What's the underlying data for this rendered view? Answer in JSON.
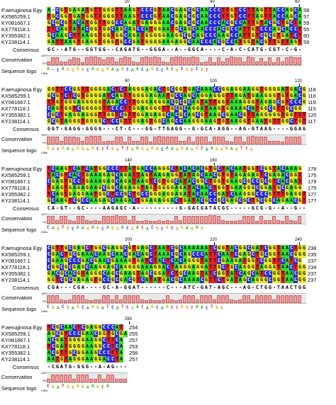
{
  "sequences": [
    "P.aeruginosa Egy",
    "KX585259.1",
    "KY081667.1",
    "KX778118.1",
    "KY355382.1",
    "KY238114.1"
  ],
  "row_labels": {
    "consensus": "Consensus",
    "conservation": "Conservation",
    "logo": "Sequence logo",
    "pct100": "100%",
    "pct0": "0%",
    "bits": "0 Bits"
  },
  "blocks": [
    {
      "ticks": [
        {
          "label": "20",
          "col": 20
        },
        {
          "label": "40",
          "col": 40
        },
        {
          "label": "60",
          "col": 60
        }
      ],
      "rows": [
        "A-CGTGAGATGTTGGGTTAAGTCCCGTAACGAGCGCAACCCTTGTCCTTAGTTACCAGCA",
        "TGCGGTGATGGTTGGGTTAAGTCCCGTAACGAGCGCAACCCTTGTCCTTAGTTACCAGCA",
        "GCGCGTACATGGTTGGCCAGATGAGGGAACGAGCGCAACCCACGCCATTGTACGCTGCTA",
        "TTCAGTATACGGTGGCAGCAGCCATGGAATGCAGCAACCCACGCCATTGTCCCAGCACCT",
        "GCAAGCTTAAGGTGGTGGCAGATGGGGGAAGGCGCAGCCCAAGCCATTGTCGCGTGATCT",
        "GATTAAGTGAGGTGGGTGCCGATGGGGAAGAGGCAACCCACGCCATGGTACGTTGTTAGT"
      ],
      "ends": [
        "58",
        "57",
        "59",
        "55",
        "60",
        "59"
      ],
      "consensus": "GC--ATG--GGTGG--CAGATG--GGGA--A--GGCA----C-A-C-CATG-CGT-C-G-T-",
      "bars": [
        4,
        9,
        9,
        4,
        4,
        7,
        9,
        8,
        3,
        9,
        10,
        10,
        9,
        7,
        9,
        9,
        4,
        8,
        10,
        9,
        4,
        3,
        9,
        10,
        9,
        10,
        9,
        4,
        3,
        9,
        10,
        10,
        9,
        9,
        10,
        9,
        3,
        4,
        9,
        3,
        9,
        4,
        8,
        10,
        9,
        9,
        4,
        10,
        9,
        4,
        8,
        4,
        9,
        3,
        9,
        4,
        9,
        10,
        9,
        9
      ],
      "logo": "A-C  A  GG  GG  CA  GGGA  A  GCA  A  C AG C CATG  CGT C G T"
    },
    {
      "ticks": [
        {
          "label": "80",
          "col": 20
        },
        {
          "label": "100",
          "col": 40
        },
        {
          "label": "120",
          "col": 60
        }
      ],
      "rows": [
        "GGTTCCGGTTGGGGACTCTAGGGAGACTGCGGTGACAAACCGGAGGAAGGTGGGGATGACG",
        "GCGTCTCGTGGGGATCAGTTGGGGAGAATGCCAGCAGGAGGGTTAGATGAAGGGTGTGACG",
        "TTGTGGGAGGGGGTAGACCTTGGGAGGGACGCGCAGTATTGGTAAAGGGTAGAGCGTCCCG",
        "CAGTGGTCGGGGGTTCCCTTGGAGGGGTTGCGCAGGATAAGTGAAAGCATGGCGTTGCGG",
        "CGCTGAGGAGGGTTGGTCGTTGGAGAGGCACGCAGCGTAAGCGAACGTTAGGGGGTGGTTT",
        "GCGTAGGGTGGGGCTCCGTTGGAGTGGCAGCCAAGGGAAGTGTAAGGTGAATGTTGGCTGT"
      ],
      "ends": [
        "118",
        "116",
        "119",
        "115",
        "120",
        "117"
      ],
      "consensus": "GGT-GAGG-GGGG---CT-C---GG-TTGAGG--G-GCA-AGG--AG-GTAAG----GGAGTTG--",
      "bars": [
        9,
        9,
        9,
        4,
        9,
        9,
        9,
        8,
        4,
        9,
        10,
        10,
        10,
        3,
        4,
        4,
        9,
        9,
        3,
        9,
        4,
        4,
        9,
        9,
        3,
        9,
        10,
        9,
        9,
        9,
        9,
        4,
        4,
        9,
        3,
        9,
        9,
        9,
        3,
        9,
        9,
        9,
        4,
        3,
        9,
        9,
        3,
        9,
        10,
        9,
        9,
        9,
        4,
        4,
        4,
        3,
        9,
        9,
        9,
        9
      ],
      "logo": "GGT GAGG GGG   CT C  GG TTGAGG G GCA AGG AG GTAAG  GGAGTTG"
    },
    {
      "ticks": [
        {
          "label": "140",
          "col": 20
        },
        {
          "label": "160",
          "col": 40
        }
      ],
      "rows": [
        "TCAAGTCATCATGGCCCTTATGACCAGGGCTACACACGTGCTACAATGGTCGGTACAAAG",
        "TACGTCACTGAAAGAGCAGATTAGTAAGAGGTATAGCAACGTGTAGAGAGTCGAGACGGT",
        "CGAGTGCCTGAAAGAGCAGATAAGTCGTGGCATACGGCTGGTGAAGCGCCGCGTCACGAT",
        "TGAGTGAGAGAAGCGGCAGAGGTAGTGGGGAGATACAACTGGTGAAGGGCGGATGCGAGG",
        "TCAGTGAGGAATGGCTCCGCTGCCGGGAGGAGATACAACCGATCAAGGGCCCGTTTGAGGT",
        "GCAAGTCGCCAAGAGCAAGACTGGAGAGGACTGATACGCCGCGAGCGCTGCGGCAGAACGT"
      ],
      "ends": [
        "178",
        "175",
        "179",
        "175",
        "177",
        "177"
      ],
      "consensus": "CA-GT--GC----AAGAGC-A----------G-GACGATACGC-----GCG-G--A--G--A--G",
      "bars": [
        9,
        9,
        4,
        9,
        9,
        4,
        3,
        9,
        9,
        4,
        3,
        4,
        3,
        9,
        9,
        9,
        10,
        9,
        9,
        4,
        9,
        3,
        3,
        4,
        3,
        3,
        4,
        3,
        4,
        3,
        9,
        4,
        9,
        9,
        9,
        9,
        9,
        9,
        10,
        10,
        9,
        4,
        3,
        3,
        3,
        4,
        9,
        9,
        9,
        3,
        9,
        4,
        4,
        9,
        4,
        3,
        9,
        4,
        3,
        9
      ],
      "logo": "CA GT GC   AAGAGC A         G GAC GATACGC   GCG G A G A G"
    },
    {
      "ticks": [
        {
          "label": "200",
          "col": 20
        },
        {
          "label": "220",
          "col": 40
        },
        {
          "label": "240",
          "col": 60
        }
      ],
      "rows": [
        "CGTTGCGAGCTGGCGAGGCGTGAGCTAATCGCAAAAAATCGGTACGGCGATCGGTAACTGG",
        "CGACTGCGAAACAAGCAACGACAGCTAAACGCAGCCCATTCAATCGAGCTGCGGTAACGGG",
        "CGAAGCCCGACGAACGAAAGTGATCTACTCACAGGGTATTCGAAGATGGTCGGTTCATCG",
        "CGGCGCGAGCAAGGAGCAGGGGAAAGGACTAGGGAGGATTGCTGCAGGGTAGGGTAACTGG",
        "GACGCACGTAGGGCAGCGAAGTAGCGGATCTGCAAGTATCGGTATCAGCATCCGGTAACGG",
        "GGTCGCGAGAGTGCCGCGACGTCATATGACGCAAAACGTTCTGATAGCAGGGCGGTAACGG"
      ],
      "ends": [
        "238",
        "235",
        "237",
        "234",
        "237",
        "237"
      ],
      "consensus": "CGA---CGA----GC-A-GGAT------C---ATC-GAT-AGC---AG-CTGG-TAACTGG",
      "bars": [
        9,
        9,
        9,
        4,
        3,
        4,
        9,
        9,
        9,
        4,
        3,
        4,
        4,
        9,
        9,
        4,
        9,
        4,
        9,
        9,
        9,
        9,
        4,
        3,
        4,
        3,
        3,
        4,
        9,
        4,
        3,
        4,
        9,
        9,
        9,
        4,
        9,
        9,
        9,
        4,
        9,
        9,
        9,
        4,
        3,
        4,
        9,
        9,
        4,
        9,
        9,
        9,
        9,
        4,
        9,
        9,
        9,
        9,
        9,
        9
      ],
      "logo": "CGA CGA GC A GGAT C ATC GAT AGC AG CTGG TAACTGG"
    },
    {
      "ticks": [
        {
          "label": "260",
          "col": 20
        }
      ],
      "rows": [
        "TCGCAACTCGAGGCCCAT",
        "AGCGTCCCGAACGGTGCGA",
        "ACGATGGGGAAGGCTTCA",
        "TCGATGGGGAAGGCCTCA",
        "ACGTTGCGGAAGCCCTTA",
        "AATGTAGGGAAGGACCTA"
      ],
      "ends": [
        "254",
        "255",
        "257",
        "253",
        "256",
        "257"
      ],
      "consensus": "-CGATG-GGG--A-AG----T--A",
      "bars": [
        4,
        9,
        9,
        9,
        9,
        9,
        4,
        9,
        9,
        9,
        4,
        4,
        9,
        4,
        9,
        9,
        4,
        4,
        4,
        4,
        9,
        4,
        4,
        9
      ],
      "logo": "CGATG GGG A AG T A"
    }
  ]
}
